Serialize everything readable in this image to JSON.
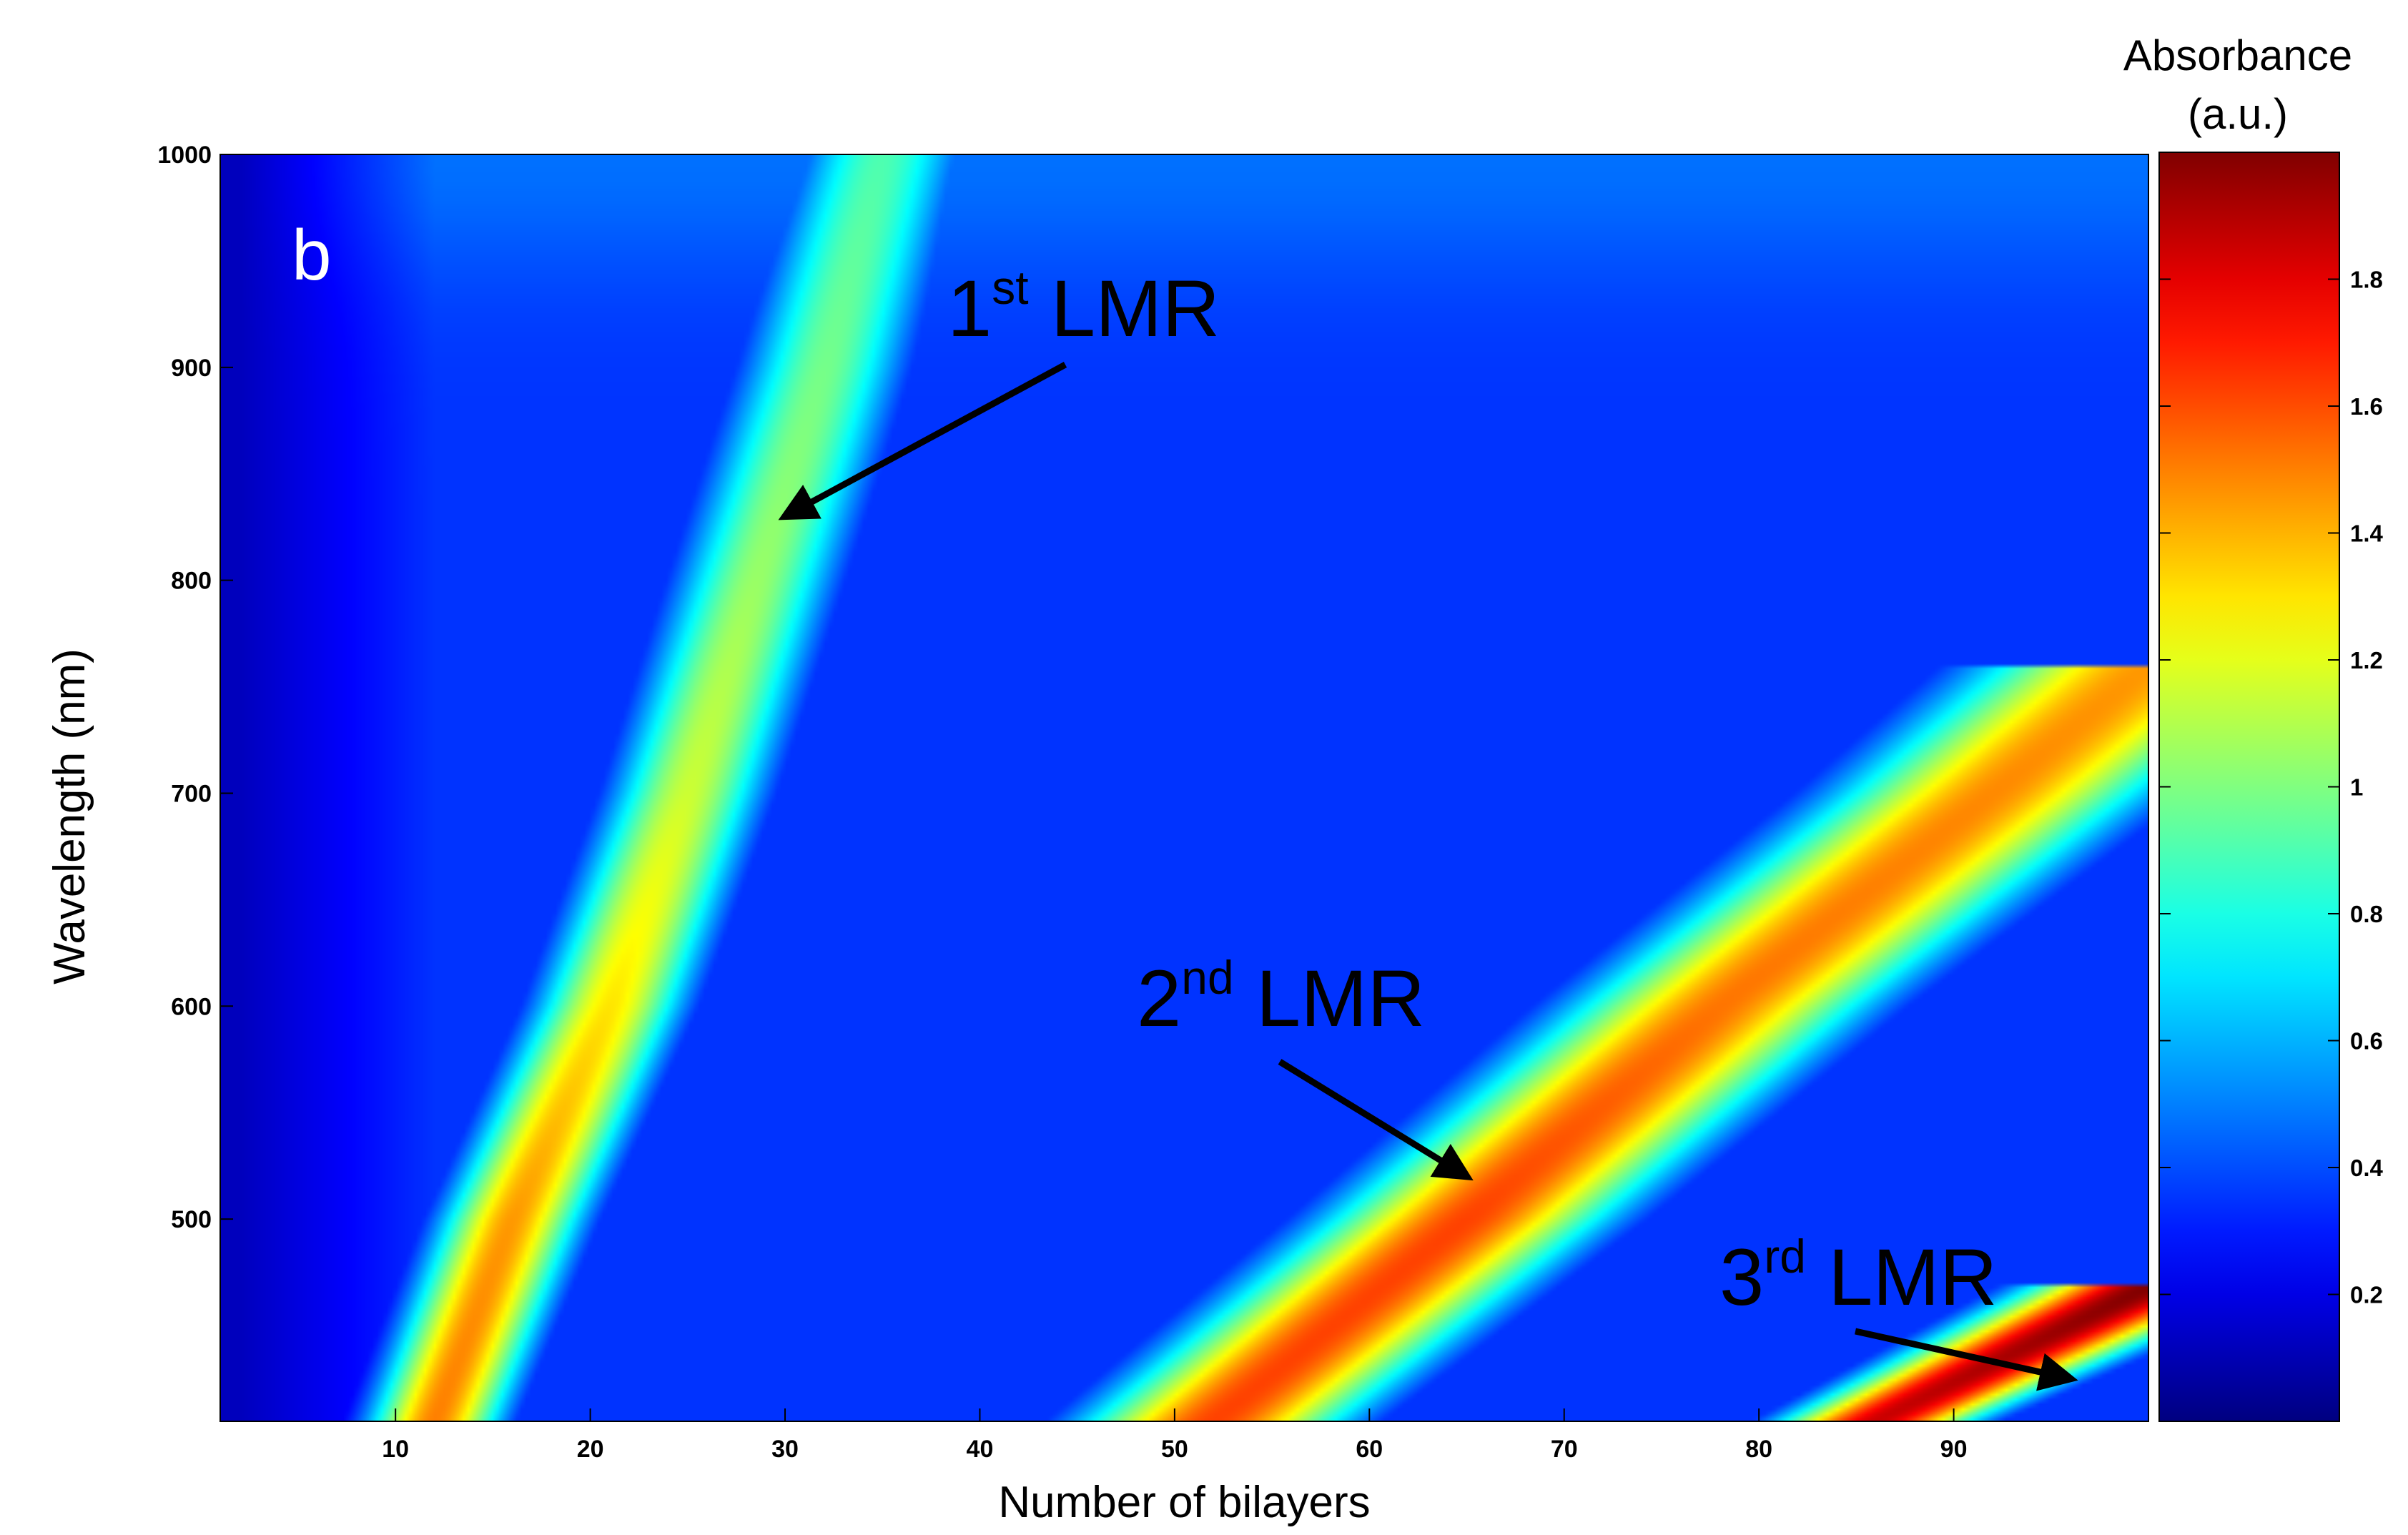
{
  "chart_data": {
    "type": "heatmap",
    "panel_label": "b",
    "xlabel": "Number of bilayers",
    "ylabel": "Wavelength   (nm)",
    "xlim": [
      1,
      100
    ],
    "ylim": [
      405,
      1000
    ],
    "xticks": [
      "10",
      "20",
      "30",
      "40",
      "50",
      "60",
      "70",
      "80",
      "90"
    ],
    "xtick_values": [
      10,
      20,
      30,
      40,
      50,
      60,
      70,
      80,
      90
    ],
    "yticks": [
      "500",
      "600",
      "700",
      "800",
      "900",
      "1000"
    ],
    "ytick_values": [
      500,
      600,
      700,
      800,
      900,
      1000
    ],
    "colormap": "jet",
    "colorbar": {
      "title_line1": "Absorbance",
      "title_line2": "(a.u.)",
      "range": [
        0,
        2
      ],
      "ticks": [
        "0.2",
        "0.4",
        "0.6",
        "0.8",
        "1",
        "1.2",
        "1.4",
        "1.6",
        "1.8"
      ],
      "tick_values": [
        0.2,
        0.4,
        0.6,
        0.8,
        1.0,
        1.2,
        1.4,
        1.6,
        1.8
      ]
    },
    "background_absorbance": 0.35,
    "bands": [
      {
        "name": "1st LMR",
        "points": [
          [
            12,
            405
          ],
          [
            16,
            500
          ],
          [
            21,
            600
          ],
          [
            25,
            700
          ],
          [
            28.5,
            800
          ],
          [
            32,
            900
          ],
          [
            35,
            1000
          ]
        ],
        "peak": [
          1.5,
          1.45,
          1.3,
          1.15,
          1.05,
          0.98,
          0.9
        ],
        "width": [
          3.5,
          3.8,
          4.0,
          4.2,
          4.4,
          4.5,
          4.6
        ]
      },
      {
        "name": "2nd LMR",
        "points": [
          [
            52,
            405
          ],
          [
            65,
            500
          ],
          [
            78,
            600
          ],
          [
            92,
            700
          ],
          [
            100,
            760
          ]
        ],
        "peak": [
          1.62,
          1.62,
          1.52,
          1.48,
          1.45
        ],
        "width": [
          7.0,
          7.5,
          8.0,
          8.5,
          9.0
        ]
      },
      {
        "name": "3rd LMR",
        "points": [
          [
            86,
            405
          ],
          [
            100,
            468
          ]
        ],
        "peak": [
          1.85,
          2.0
        ],
        "width": [
          5.0,
          6.0
        ]
      }
    ],
    "annotations": [
      {
        "base": "1",
        "sup": "st",
        "rest": " LMR",
        "arrow_to": [
          30,
          830
        ]
      },
      {
        "base": "2",
        "sup": "nd",
        "rest": " LMR",
        "arrow_to": [
          65,
          520
        ]
      },
      {
        "base": "3",
        "sup": "rd",
        "rest": " LMR",
        "arrow_to": [
          96,
          425
        ]
      }
    ]
  }
}
